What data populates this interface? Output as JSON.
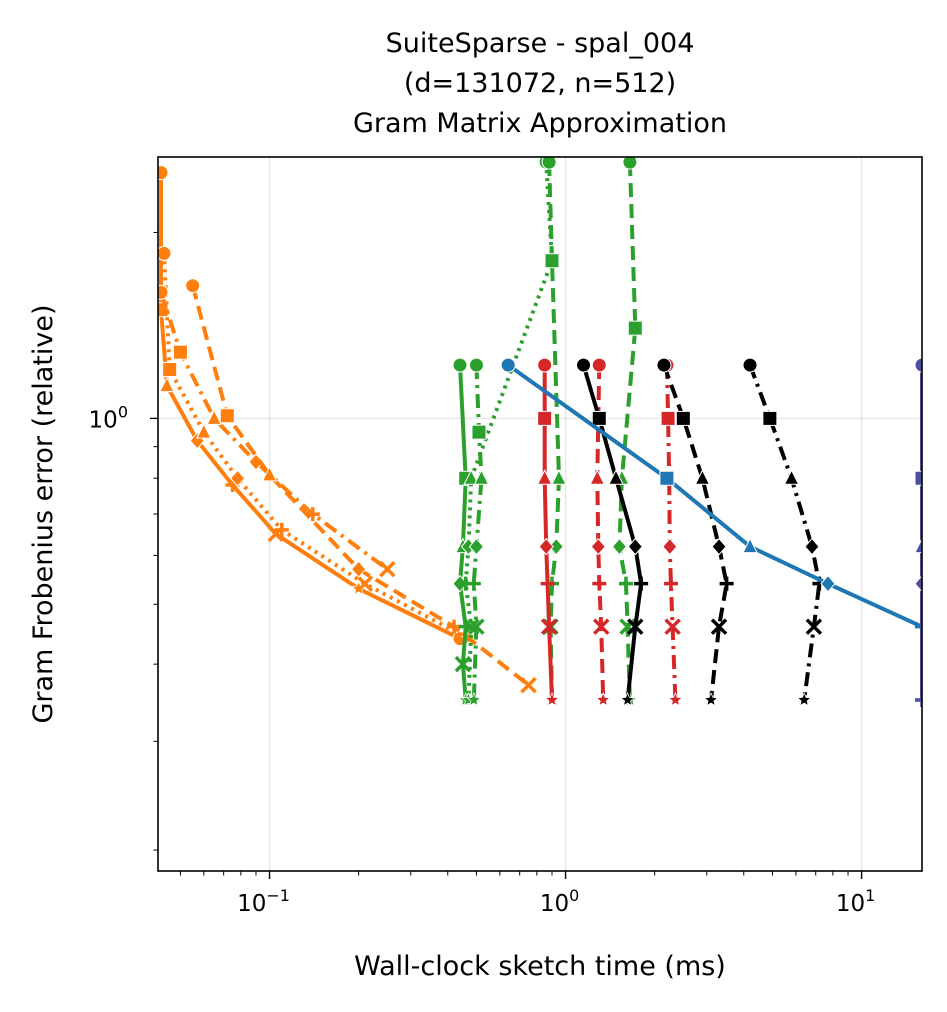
{
  "chart_data": {
    "type": "line",
    "title_lines": [
      "SuiteSparse - spal_004",
      "(d=131072, n=512)",
      "Gram Matrix Approximation"
    ],
    "xlabel": "Wall-clock sketch time (ms)",
    "ylabel": "Gram Frobenius error (relative)",
    "x_scale": "log",
    "y_scale": "log",
    "xlim": [
      0.042,
      16
    ],
    "ylim": [
      0.185,
      2.65
    ],
    "x_ticks": [
      {
        "value": 0.1,
        "base": "10",
        "exp": "−1"
      },
      {
        "value": 1,
        "base": "10",
        "exp": "0"
      },
      {
        "value": 10,
        "base": "10",
        "exp": "1"
      }
    ],
    "y_ticks": [
      {
        "value": 1,
        "base": "10",
        "exp": "0"
      }
    ],
    "grid": true,
    "colors": {
      "orange": "#ff7f0e",
      "green": "#2ca02c",
      "red": "#d62728",
      "black": "#000000",
      "blue": "#1f77b4",
      "purple": "#4f4f9f"
    },
    "series": [
      {
        "color": "orange",
        "dash": "solid",
        "x": [
          0.043,
          0.043,
          0.045,
          0.057,
          0.075,
          0.105,
          0.2,
          0.44
        ],
        "y": [
          2.5,
          1.5,
          1.13,
          0.92,
          0.78,
          0.65,
          0.53,
          0.44
        ]
      },
      {
        "color": "orange",
        "dash": "dotted",
        "x": [
          0.044,
          0.046,
          0.06,
          0.078,
          0.11,
          0.21,
          0.47
        ],
        "y": [
          1.85,
          1.2,
          0.95,
          0.8,
          0.66,
          0.54,
          0.44
        ]
      },
      {
        "color": "orange",
        "dash": "dashdot",
        "x": [
          0.043,
          0.05,
          0.065,
          0.09,
          0.14,
          0.25
        ],
        "y": [
          1.6,
          1.28,
          1.0,
          0.85,
          0.7,
          0.57
        ]
      },
      {
        "color": "orange",
        "dash": "dashed",
        "x": [
          0.055,
          0.072,
          0.1,
          0.2,
          0.42,
          0.75
        ],
        "y": [
          1.64,
          1.01,
          0.81,
          0.57,
          0.46,
          0.37
        ]
      },
      {
        "color": "green",
        "dash": "solid",
        "x": [
          0.44,
          0.46,
          0.45,
          0.44,
          0.46,
          0.45,
          0.46
        ],
        "y": [
          1.22,
          0.8,
          0.62,
          0.54,
          0.46,
          0.4,
          0.35
        ]
      },
      {
        "color": "green",
        "dash": "dotted",
        "x": [
          0.86,
          0.9,
          0.48,
          0.47,
          0.46,
          0.48,
          0.47
        ],
        "y": [
          2.6,
          1.8,
          0.8,
          0.62,
          0.54,
          0.46,
          0.35
        ]
      },
      {
        "color": "green",
        "dash": "dashdot",
        "x": [
          0.5,
          0.51,
          0.52,
          0.5,
          0.49,
          0.5,
          0.49
        ],
        "y": [
          1.22,
          0.95,
          0.8,
          0.62,
          0.54,
          0.46,
          0.35
        ]
      },
      {
        "color": "green",
        "dash": "dashed",
        "x": [
          0.88,
          0.9,
          0.95,
          0.93,
          0.9,
          0.89,
          0.9
        ],
        "y": [
          2.6,
          1.8,
          0.8,
          0.62,
          0.54,
          0.46,
          0.35
        ]
      },
      {
        "color": "green",
        "dash": "dashed",
        "x": [
          1.65,
          1.72,
          1.55,
          1.52,
          1.6,
          1.62,
          1.65
        ],
        "y": [
          2.6,
          1.4,
          0.8,
          0.62,
          0.54,
          0.46,
          0.35
        ]
      },
      {
        "color": "red",
        "dash": "solid",
        "x": [
          0.85,
          0.85,
          0.85,
          0.86,
          0.87,
          0.88,
          0.9
        ],
        "y": [
          1.22,
          1.0,
          0.8,
          0.62,
          0.54,
          0.46,
          0.35
        ]
      },
      {
        "color": "red",
        "dash": "dashed",
        "x": [
          1.3,
          1.29,
          1.28,
          1.29,
          1.3,
          1.32,
          1.34
        ],
        "y": [
          1.22,
          1.0,
          0.8,
          0.62,
          0.54,
          0.46,
          0.35
        ]
      },
      {
        "color": "red",
        "dash": "dashdot",
        "x": [
          2.2,
          2.22,
          2.24,
          2.25,
          2.27,
          2.3,
          2.35
        ],
        "y": [
          1.22,
          1.0,
          0.8,
          0.62,
          0.54,
          0.46,
          0.35
        ]
      },
      {
        "color": "black",
        "dash": "solid",
        "x": [
          1.15,
          1.3,
          1.48,
          1.72,
          1.8,
          1.72,
          1.62
        ],
        "y": [
          1.22,
          1.0,
          0.8,
          0.62,
          0.54,
          0.46,
          0.35
        ]
      },
      {
        "color": "black",
        "dash": "dashed",
        "x": [
          2.15,
          2.5,
          2.9,
          3.3,
          3.5,
          3.3,
          3.1
        ],
        "y": [
          1.22,
          1.0,
          0.8,
          0.62,
          0.54,
          0.46,
          0.35
        ]
      },
      {
        "color": "black",
        "dash": "dashdot",
        "x": [
          4.2,
          4.9,
          5.8,
          6.8,
          7.2,
          6.9,
          6.4
        ],
        "y": [
          1.22,
          1.0,
          0.8,
          0.62,
          0.54,
          0.46,
          0.35
        ]
      },
      {
        "color": "blue",
        "dash": "solid",
        "x": [
          0.64,
          2.2,
          4.2,
          7.7,
          16.0
        ],
        "y": [
          1.22,
          0.8,
          0.62,
          0.54,
          0.46
        ]
      },
      {
        "color": "purple",
        "dash": "solid",
        "x": [
          16.0,
          16.0,
          16.0,
          16.0,
          16.0
        ],
        "y": [
          1.22,
          0.8,
          0.62,
          0.54,
          0.35
        ]
      }
    ]
  }
}
